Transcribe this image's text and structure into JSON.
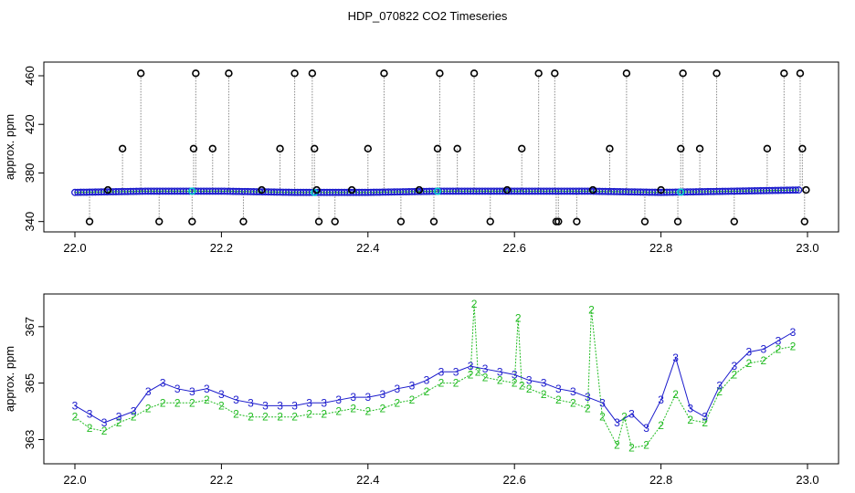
{
  "title": "HDP_070822  CO2 Timeseries",
  "colors": {
    "frame": "#000000",
    "series2": "#22bb22",
    "series3": "#1a1acc",
    "outlier": "#000000",
    "dotted": "#888888",
    "cyan": "#00cccc"
  },
  "chart_data": [
    {
      "type": "scatter",
      "title": "",
      "xlabel": "",
      "ylabel": "approx. ppm",
      "xlim": [
        22.0,
        23.0
      ],
      "ylim": [
        336,
        466
      ],
      "x_ticks": [
        "22.0",
        "22.2",
        "22.4",
        "22.6",
        "22.8",
        "23.0"
      ],
      "y_ticks": [
        "340",
        "380",
        "420",
        "460"
      ],
      "grid": false,
      "baseline": {
        "x": [
          22.0,
          22.1,
          22.2,
          22.3,
          22.4,
          22.5,
          22.6,
          22.7,
          22.8,
          22.9,
          22.99
        ],
        "y": [
          364,
          365,
          365,
          364,
          364,
          365,
          365,
          365,
          364,
          365,
          366
        ]
      },
      "outliers_x": [
        22.02,
        22.045,
        22.065,
        22.09,
        22.115,
        22.16,
        22.162,
        22.165,
        22.188,
        22.21,
        22.23,
        22.255,
        22.28,
        22.3,
        22.324,
        22.327,
        22.33,
        22.333,
        22.355,
        22.378,
        22.4,
        22.422,
        22.445,
        22.47,
        22.49,
        22.495,
        22.498,
        22.522,
        22.545,
        22.567,
        22.59,
        22.61,
        22.633,
        22.655,
        22.657,
        22.66,
        22.685,
        22.707,
        22.73,
        22.753,
        22.778,
        22.8,
        22.823,
        22.827,
        22.83,
        22.853,
        22.876,
        22.9,
        22.945,
        22.968,
        22.99,
        22.993,
        22.996,
        22.998
      ],
      "outliers_y": [
        340,
        366,
        400,
        462,
        340,
        340,
        400,
        462,
        400,
        462,
        340,
        366,
        400,
        462,
        462,
        400,
        366,
        340,
        340,
        366,
        400,
        462,
        340,
        366,
        340,
        400,
        462,
        400,
        462,
        340,
        366,
        400,
        462,
        462,
        340,
        340,
        340,
        366,
        400,
        462,
        340,
        366,
        340,
        400,
        462,
        400,
        462,
        340,
        400,
        462,
        462,
        400,
        340,
        366
      ]
    },
    {
      "type": "scatter",
      "title": "",
      "xlabel": "",
      "ylabel": "approx. ppm",
      "xlim": [
        22.0,
        23.0
      ],
      "ylim": [
        362.4,
        367.9
      ],
      "x_ticks": [
        "22.0",
        "22.2",
        "22.4",
        "22.6",
        "22.8",
        "23.0"
      ],
      "y_ticks": [
        "363",
        "365",
        "367"
      ],
      "grid": false,
      "series": [
        {
          "name": "2",
          "x": [
            22.0,
            22.02,
            22.04,
            22.06,
            22.08,
            22.1,
            22.12,
            22.14,
            22.16,
            22.18,
            22.2,
            22.22,
            22.24,
            22.26,
            22.28,
            22.3,
            22.32,
            22.34,
            22.36,
            22.38,
            22.4,
            22.42,
            22.44,
            22.46,
            22.48,
            22.5,
            22.52,
            22.54,
            22.545,
            22.55,
            22.56,
            22.58,
            22.6,
            22.605,
            22.61,
            22.62,
            22.64,
            22.66,
            22.68,
            22.7,
            22.705,
            22.72,
            22.74,
            22.75,
            22.76,
            22.78,
            22.8,
            22.82,
            22.84,
            22.86,
            22.88,
            22.9,
            22.92,
            22.94,
            22.96,
            22.98
          ],
          "y": [
            363.8,
            363.4,
            363.3,
            363.6,
            363.8,
            364.1,
            364.3,
            364.3,
            364.3,
            364.4,
            364.2,
            363.9,
            363.8,
            363.8,
            363.8,
            363.8,
            363.9,
            363.9,
            364.0,
            364.1,
            364.0,
            364.1,
            364.3,
            364.4,
            364.7,
            365.0,
            365.0,
            365.3,
            367.8,
            365.4,
            365.2,
            365.1,
            365.0,
            367.3,
            364.9,
            364.8,
            364.6,
            364.4,
            364.3,
            364.1,
            367.6,
            363.8,
            362.8,
            363.8,
            362.7,
            362.8,
            363.5,
            364.6,
            363.7,
            363.6,
            364.7,
            365.3,
            365.7,
            365.8,
            366.2,
            366.3
          ]
        },
        {
          "name": "3",
          "x": [
            22.0,
            22.02,
            22.04,
            22.06,
            22.08,
            22.1,
            22.12,
            22.14,
            22.16,
            22.18,
            22.2,
            22.22,
            22.24,
            22.26,
            22.28,
            22.3,
            22.32,
            22.34,
            22.36,
            22.38,
            22.4,
            22.42,
            22.44,
            22.46,
            22.48,
            22.5,
            22.52,
            22.54,
            22.56,
            22.58,
            22.6,
            22.62,
            22.64,
            22.66,
            22.68,
            22.7,
            22.72,
            22.74,
            22.76,
            22.78,
            22.8,
            22.82,
            22.84,
            22.86,
            22.88,
            22.9,
            22.92,
            22.94,
            22.96,
            22.98
          ],
          "y": [
            364.2,
            363.9,
            363.6,
            363.8,
            364.0,
            364.7,
            365.0,
            364.8,
            364.7,
            364.8,
            364.6,
            364.4,
            364.3,
            364.2,
            364.2,
            364.2,
            364.3,
            364.3,
            364.4,
            364.5,
            364.5,
            364.6,
            364.8,
            364.9,
            365.1,
            365.4,
            365.4,
            365.6,
            365.5,
            365.4,
            365.3,
            365.1,
            365.0,
            364.8,
            364.7,
            364.5,
            364.3,
            363.6,
            363.9,
            363.4,
            364.4,
            365.9,
            364.1,
            363.8,
            364.9,
            365.6,
            366.1,
            366.2,
            366.5,
            366.8
          ]
        }
      ]
    }
  ]
}
